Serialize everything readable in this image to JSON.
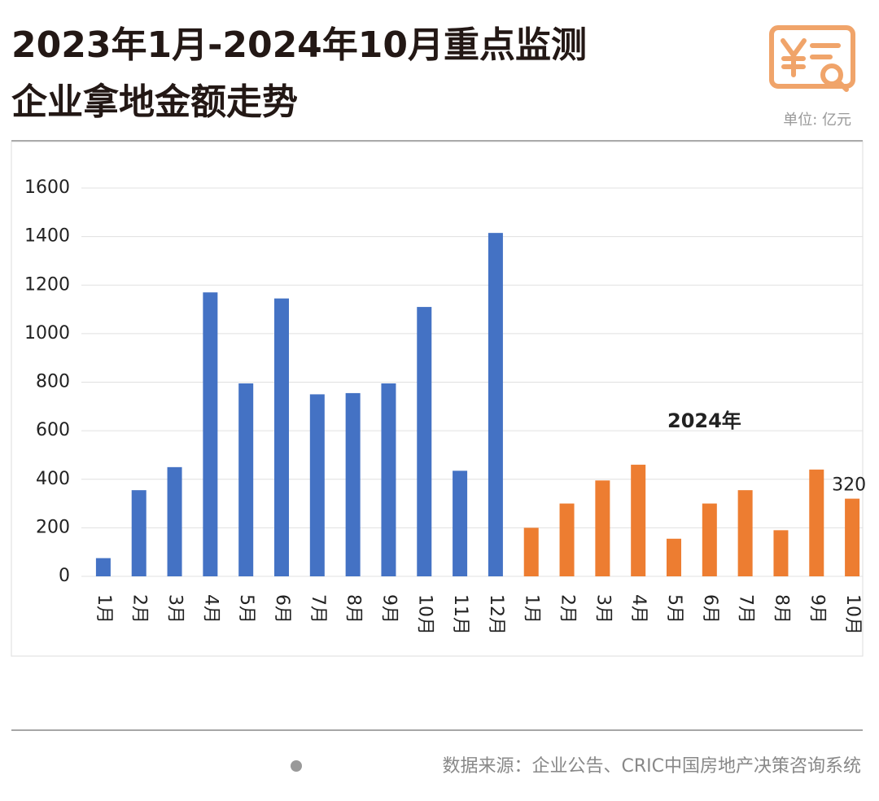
{
  "chart_data": {
    "type": "bar",
    "title": [
      "2023年1月-2024年10月重点监测",
      "企业拿地金额走势"
    ],
    "unit": "单位: 亿元",
    "categories": [
      "1月",
      "2月",
      "3月",
      "4月",
      "5月",
      "6月",
      "7月",
      "8月",
      "9月",
      "10月",
      "11月",
      "12月",
      "1月",
      "2月",
      "3月",
      "4月",
      "5月",
      "6月",
      "7月",
      "8月",
      "9月",
      "10月"
    ],
    "values": [
      75,
      355,
      450,
      1170,
      795,
      1145,
      750,
      755,
      795,
      1110,
      435,
      1415,
      200,
      300,
      395,
      460,
      155,
      300,
      355,
      190,
      440,
      320
    ],
    "colors": [
      "#4472c4",
      "#4472c4",
      "#4472c4",
      "#4472c4",
      "#4472c4",
      "#4472c4",
      "#4472c4",
      "#4472c4",
      "#4472c4",
      "#4472c4",
      "#4472c4",
      "#4472c4",
      "#ed7d31",
      "#ed7d31",
      "#ed7d31",
      "#ed7d31",
      "#ed7d31",
      "#ed7d31",
      "#ed7d31",
      "#ed7d31",
      "#ed7d31",
      "#ed7d31"
    ],
    "labeled_points": [
      21
    ],
    "annotation": "2024年",
    "ylim": [
      0,
      1600
    ],
    "yticks": [
      0,
      200,
      400,
      600,
      800,
      1000,
      1200,
      1400,
      1600
    ],
    "grid": true,
    "source": "数据来源：企业公告、CRIC中国房地产决策咨询系统"
  }
}
